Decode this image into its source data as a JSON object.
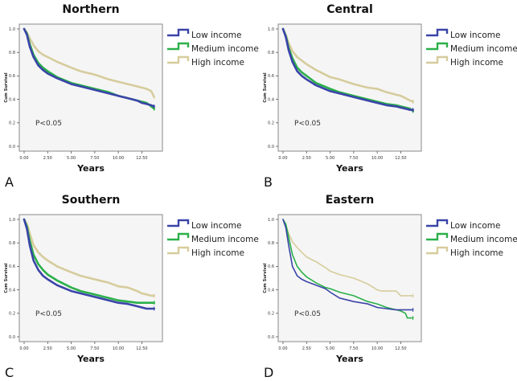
{
  "colors": {
    "low": "#3a44a8",
    "medium": "#2bb04a",
    "high": "#d6cc9c",
    "plot_bg": "#f5f5f5",
    "frame": "#8a8a8a"
  },
  "chart_data": [
    {
      "type": "line",
      "panel_label": "A",
      "title": "Northern",
      "xlabel": "Years",
      "ylabel": "Cum Survival",
      "annotation": "P<0.05",
      "xlim": [
        0,
        14
      ],
      "ylim": [
        0,
        1.0
      ],
      "xticks": [
        "0.00",
        "2.50",
        "5.00",
        "7.50",
        "10.00",
        "12.50"
      ],
      "xtick_values": [
        0,
        2.5,
        5,
        7.5,
        10,
        12.5
      ],
      "yticks": [
        "0.0",
        "0.2",
        "0.4",
        "0.6",
        "0.8",
        "1.0"
      ],
      "ytick_values": [
        0,
        0.2,
        0.4,
        0.6,
        0.8,
        1.0
      ],
      "legend": [
        "Low income",
        "Medium income",
        "High income"
      ],
      "legend_position": "right",
      "series": [
        {
          "name": "Low income",
          "key": "low",
          "x": [
            0,
            0.3,
            0.6,
            1.0,
            1.5,
            2.0,
            2.5,
            3.5,
            5.0,
            6.0,
            7.5,
            9.0,
            10.0,
            11.0,
            12.0,
            12.5,
            13.0,
            13.5,
            13.8
          ],
          "y": [
            1.0,
            0.95,
            0.85,
            0.76,
            0.69,
            0.65,
            0.62,
            0.58,
            0.53,
            0.51,
            0.48,
            0.45,
            0.43,
            0.41,
            0.39,
            0.37,
            0.36,
            0.35,
            0.34
          ]
        },
        {
          "name": "Medium income",
          "key": "medium",
          "x": [
            0,
            0.3,
            0.6,
            1.0,
            1.5,
            2.0,
            2.5,
            3.5,
            5.0,
            6.0,
            7.5,
            9.0,
            10.0,
            11.0,
            12.0,
            12.5,
            13.0,
            13.5,
            13.8
          ],
          "y": [
            1.0,
            0.96,
            0.87,
            0.78,
            0.71,
            0.67,
            0.64,
            0.59,
            0.54,
            0.52,
            0.49,
            0.46,
            0.43,
            0.41,
            0.39,
            0.38,
            0.37,
            0.34,
            0.32
          ]
        },
        {
          "name": "High income",
          "key": "high",
          "x": [
            0,
            0.3,
            0.6,
            1.0,
            1.5,
            2.0,
            2.5,
            3.5,
            5.0,
            6.0,
            7.5,
            9.0,
            10.0,
            11.0,
            12.0,
            12.5,
            13.0,
            13.5,
            13.8
          ],
          "y": [
            1.0,
            0.97,
            0.92,
            0.86,
            0.81,
            0.78,
            0.76,
            0.72,
            0.67,
            0.64,
            0.61,
            0.57,
            0.55,
            0.53,
            0.51,
            0.5,
            0.49,
            0.47,
            0.42
          ]
        }
      ]
    },
    {
      "type": "line",
      "panel_label": "B",
      "title": "Central",
      "xlabel": "Years",
      "ylabel": "Cum Survival",
      "annotation": "P<0.05",
      "xlim": [
        0,
        14
      ],
      "ylim": [
        0,
        1.0
      ],
      "xticks": [
        "0.00",
        "2.50",
        "5.00",
        "7.50",
        "10.00",
        "12.50"
      ],
      "xtick_values": [
        0,
        2.5,
        5,
        7.5,
        10,
        12.5
      ],
      "yticks": [
        "0.0",
        "0.2",
        "0.4",
        "0.6",
        "0.8",
        "1.0"
      ],
      "ytick_values": [
        0,
        0.2,
        0.4,
        0.6,
        0.8,
        1.0
      ],
      "legend": [
        "Low income",
        "Medium income",
        "High income"
      ],
      "legend_position": "right",
      "series": [
        {
          "name": "Low income",
          "key": "low",
          "x": [
            0,
            0.3,
            0.6,
            1.0,
            1.5,
            2.0,
            2.5,
            3.5,
            5.0,
            6.0,
            7.5,
            9.0,
            10.0,
            11.0,
            12.0,
            12.5,
            13.0,
            13.5,
            13.8
          ],
          "y": [
            1.0,
            0.93,
            0.82,
            0.72,
            0.64,
            0.6,
            0.57,
            0.52,
            0.47,
            0.45,
            0.42,
            0.39,
            0.37,
            0.35,
            0.34,
            0.33,
            0.32,
            0.31,
            0.31
          ]
        },
        {
          "name": "Medium income",
          "key": "medium",
          "x": [
            0,
            0.3,
            0.6,
            1.0,
            1.5,
            2.0,
            2.5,
            3.5,
            5.0,
            6.0,
            7.5,
            9.0,
            10.0,
            11.0,
            12.0,
            12.5,
            13.0,
            13.5,
            13.8
          ],
          "y": [
            1.0,
            0.94,
            0.84,
            0.75,
            0.67,
            0.63,
            0.6,
            0.54,
            0.49,
            0.46,
            0.43,
            0.4,
            0.38,
            0.36,
            0.35,
            0.34,
            0.33,
            0.32,
            0.3
          ]
        },
        {
          "name": "High income",
          "key": "high",
          "x": [
            0,
            0.3,
            0.6,
            1.0,
            1.5,
            2.0,
            2.5,
            3.5,
            5.0,
            6.0,
            7.5,
            9.0,
            10.0,
            11.0,
            12.0,
            12.5,
            13.0,
            13.5,
            13.8
          ],
          "y": [
            1.0,
            0.95,
            0.88,
            0.81,
            0.76,
            0.73,
            0.7,
            0.65,
            0.59,
            0.57,
            0.53,
            0.5,
            0.49,
            0.46,
            0.44,
            0.43,
            0.41,
            0.39,
            0.38
          ]
        }
      ]
    },
    {
      "type": "line",
      "panel_label": "C",
      "title": "Southern",
      "xlabel": "Years",
      "ylabel": "Cum Survival",
      "annotation": "P<0.05",
      "xlim": [
        0,
        14
      ],
      "ylim": [
        0,
        1.0
      ],
      "xticks": [
        "0.00",
        "2.50",
        "5.00",
        "7.50",
        "10.00",
        "12.50"
      ],
      "xtick_values": [
        0,
        2.5,
        5,
        7.5,
        10,
        12.5
      ],
      "yticks": [
        "0.0",
        "0.2",
        "0.4",
        "0.6",
        "0.8",
        "1.0"
      ],
      "ytick_values": [
        0,
        0.2,
        0.4,
        0.6,
        0.8,
        1.0
      ],
      "legend": [
        "Low income",
        "Medium income",
        "High income"
      ],
      "legend_position": "right",
      "series": [
        {
          "name": "Low income",
          "key": "low",
          "x": [
            0,
            0.3,
            0.6,
            1.0,
            1.5,
            2.0,
            2.5,
            3.5,
            5.0,
            6.0,
            7.5,
            9.0,
            10.0,
            11.0,
            12.0,
            12.5,
            13.0,
            13.5,
            13.8
          ],
          "y": [
            1.0,
            0.92,
            0.78,
            0.65,
            0.57,
            0.52,
            0.49,
            0.44,
            0.39,
            0.37,
            0.34,
            0.31,
            0.29,
            0.28,
            0.26,
            0.25,
            0.24,
            0.24,
            0.24
          ]
        },
        {
          "name": "Medium income",
          "key": "medium",
          "x": [
            0,
            0.3,
            0.6,
            1.0,
            1.5,
            2.0,
            2.5,
            3.5,
            5.0,
            6.0,
            7.5,
            9.0,
            10.0,
            11.0,
            12.0,
            12.5,
            13.0,
            13.5,
            13.8
          ],
          "y": [
            1.0,
            0.94,
            0.82,
            0.7,
            0.62,
            0.57,
            0.53,
            0.48,
            0.42,
            0.39,
            0.36,
            0.33,
            0.31,
            0.3,
            0.29,
            0.29,
            0.29,
            0.29,
            0.29
          ]
        },
        {
          "name": "High income",
          "key": "high",
          "x": [
            0,
            0.3,
            0.6,
            1.0,
            1.5,
            2.0,
            2.5,
            3.5,
            5.0,
            6.0,
            7.5,
            9.0,
            10.0,
            11.0,
            12.0,
            12.5,
            13.0,
            13.5,
            13.8
          ],
          "y": [
            1.0,
            0.96,
            0.88,
            0.78,
            0.72,
            0.68,
            0.65,
            0.6,
            0.55,
            0.52,
            0.49,
            0.46,
            0.43,
            0.42,
            0.39,
            0.37,
            0.36,
            0.35,
            0.35
          ]
        }
      ]
    },
    {
      "type": "line",
      "panel_label": "D",
      "title": "Eastern",
      "xlabel": "Years",
      "ylabel": "Cum Survival",
      "annotation": "P<0.05",
      "xlim": [
        0,
        14
      ],
      "ylim": [
        0,
        1.0
      ],
      "xticks": [
        "0.00",
        "2.50",
        "5.00",
        "7.50",
        "10.00",
        "12.50"
      ],
      "xtick_values": [
        0,
        2.5,
        5,
        7.5,
        10,
        12.5
      ],
      "yticks": [
        "0.0",
        "0.2",
        "0.4",
        "0.6",
        "0.8",
        "1.0"
      ],
      "ytick_values": [
        0,
        0.2,
        0.4,
        0.6,
        0.8,
        1.0
      ],
      "legend": [
        "Low income",
        "Medium income",
        "High income"
      ],
      "legend_position": "right",
      "series": [
        {
          "name": "Low income",
          "key": "low",
          "x": [
            0,
            0.3,
            0.6,
            1.0,
            1.5,
            2.0,
            2.5,
            3.5,
            4.5,
            5.0,
            6.0,
            7.5,
            9.0,
            10.0,
            11.0,
            12.0,
            12.5,
            13.0,
            13.5,
            13.8
          ],
          "y": [
            1.0,
            0.93,
            0.78,
            0.6,
            0.52,
            0.49,
            0.47,
            0.44,
            0.41,
            0.38,
            0.33,
            0.3,
            0.28,
            0.25,
            0.24,
            0.23,
            0.23,
            0.23,
            0.23,
            0.23
          ]
        },
        {
          "name": "Medium income",
          "key": "medium",
          "x": [
            0,
            0.3,
            0.6,
            1.0,
            1.5,
            2.0,
            2.5,
            3.5,
            4.5,
            5.0,
            6.0,
            7.5,
            9.0,
            10.0,
            11.0,
            12.0,
            12.5,
            13.0,
            13.2,
            13.8
          ],
          "y": [
            1.0,
            0.96,
            0.85,
            0.7,
            0.6,
            0.55,
            0.51,
            0.46,
            0.42,
            0.41,
            0.38,
            0.35,
            0.3,
            0.28,
            0.25,
            0.23,
            0.22,
            0.2,
            0.16,
            0.16
          ]
        },
        {
          "name": "High income",
          "key": "high",
          "x": [
            0,
            0.3,
            0.6,
            1.0,
            1.5,
            2.0,
            2.5,
            3.5,
            4.5,
            5.0,
            6.0,
            7.5,
            9.0,
            10.0,
            10.5,
            11.5,
            12.0,
            12.5,
            13.0,
            13.8
          ],
          "y": [
            1.0,
            0.95,
            0.88,
            0.81,
            0.76,
            0.72,
            0.68,
            0.64,
            0.59,
            0.56,
            0.53,
            0.5,
            0.45,
            0.4,
            0.39,
            0.39,
            0.39,
            0.35,
            0.35,
            0.35
          ]
        }
      ]
    }
  ]
}
